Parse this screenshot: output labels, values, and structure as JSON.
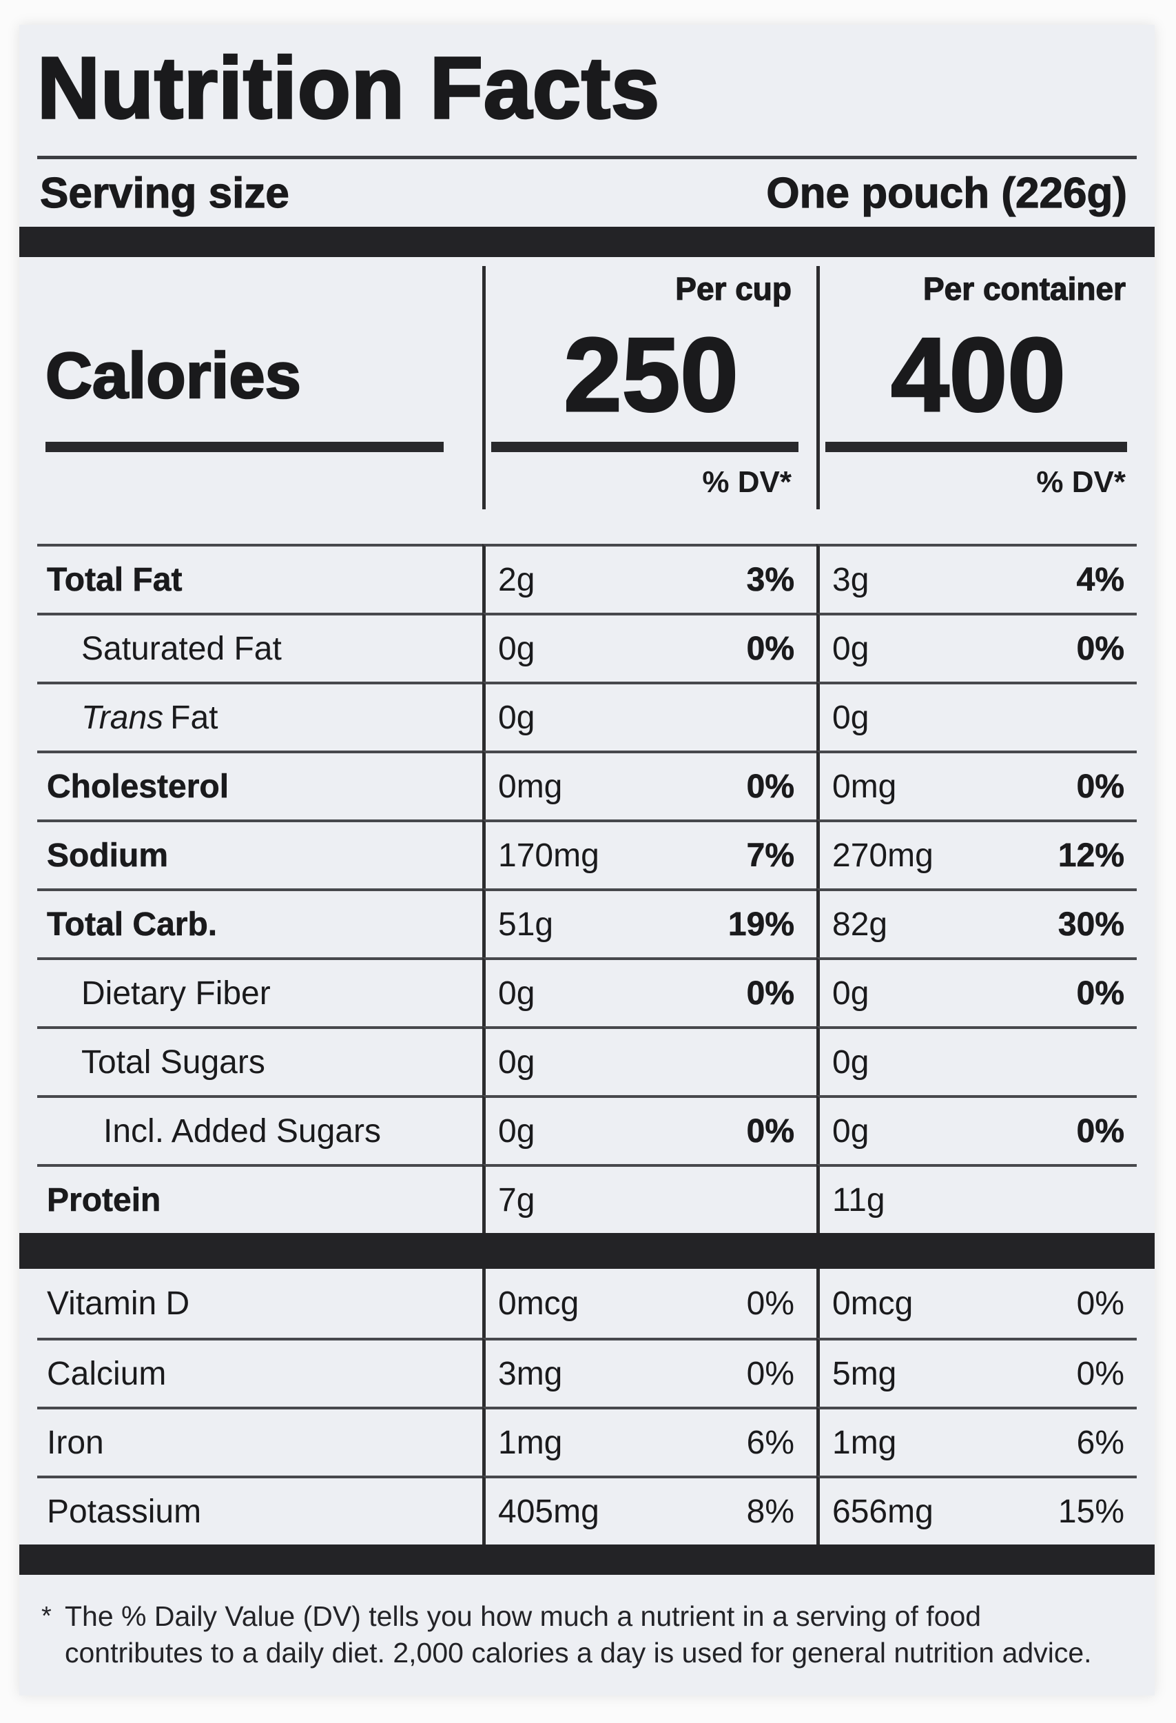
{
  "label": {
    "title": "Nutrition Facts",
    "serving": {
      "label": "Serving size",
      "value": "One pouch (226g)"
    },
    "calories": {
      "label": "Calories",
      "per_cup_header": "Per cup",
      "per_container_header": "Per container",
      "per_cup_value": "250",
      "per_container_value": "400",
      "dv_header_cup": "% DV*",
      "dv_header_container": "% DV*"
    },
    "nutrients": [
      {
        "prefix": "",
        "name": "Total Fat",
        "cup_amt": "2g",
        "cup_dv": "3%",
        "cont_amt": "3g",
        "cont_dv": "4%"
      },
      {
        "prefix": "",
        "name": "Saturated Fat",
        "cup_amt": "0g",
        "cup_dv": "0%",
        "cont_amt": "0g",
        "cont_dv": "0%"
      },
      {
        "prefix": "Trans",
        "name": "Fat",
        "cup_amt": "0g",
        "cup_dv": "",
        "cont_amt": "0g",
        "cont_dv": ""
      },
      {
        "prefix": "",
        "name": "Cholesterol",
        "cup_amt": "0mg",
        "cup_dv": "0%",
        "cont_amt": "0mg",
        "cont_dv": "0%"
      },
      {
        "prefix": "",
        "name": "Sodium",
        "cup_amt": "170mg",
        "cup_dv": "7%",
        "cont_amt": "270mg",
        "cont_dv": "12%"
      },
      {
        "prefix": "",
        "name": "Total Carb.",
        "cup_amt": "51g",
        "cup_dv": "19%",
        "cont_amt": "82g",
        "cont_dv": "30%"
      },
      {
        "prefix": "",
        "name": "Dietary Fiber",
        "cup_amt": "0g",
        "cup_dv": "0%",
        "cont_amt": "0g",
        "cont_dv": "0%"
      },
      {
        "prefix": "",
        "name": "Total Sugars",
        "cup_amt": "0g",
        "cup_dv": "",
        "cont_amt": "0g",
        "cont_dv": ""
      },
      {
        "prefix": "",
        "name": "Incl. Added Sugars",
        "cup_amt": "0g",
        "cup_dv": "0%",
        "cont_amt": "0g",
        "cont_dv": "0%"
      },
      {
        "prefix": "",
        "name": "Protein",
        "cup_amt": "7g",
        "cup_dv": "",
        "cont_amt": "11g",
        "cont_dv": ""
      }
    ],
    "micros": [
      {
        "name": "Vitamin D",
        "cup_amt": "0mcg",
        "cup_dv": "0%",
        "cont_amt": "0mcg",
        "cont_dv": "0%"
      },
      {
        "name": "Calcium",
        "cup_amt": "3mg",
        "cup_dv": "0%",
        "cont_amt": "5mg",
        "cont_dv": "0%"
      },
      {
        "name": "Iron",
        "cup_amt": "1mg",
        "cup_dv": "6%",
        "cont_amt": "1mg",
        "cont_dv": "6%"
      },
      {
        "name": "Potassium",
        "cup_amt": "405mg",
        "cup_dv": "8%",
        "cont_amt": "656mg",
        "cont_dv": "15%"
      }
    ],
    "footnote": {
      "marker": "*",
      "text": "The % Daily Value (DV) tells you how much a nutrient in a serving of food contributes to a daily diet. 2,000 calories a day is used for general nutrition advice."
    },
    "colors": {
      "label_background": "#edeff3",
      "text": "#1a1a1c",
      "bar": "#232326"
    }
  }
}
